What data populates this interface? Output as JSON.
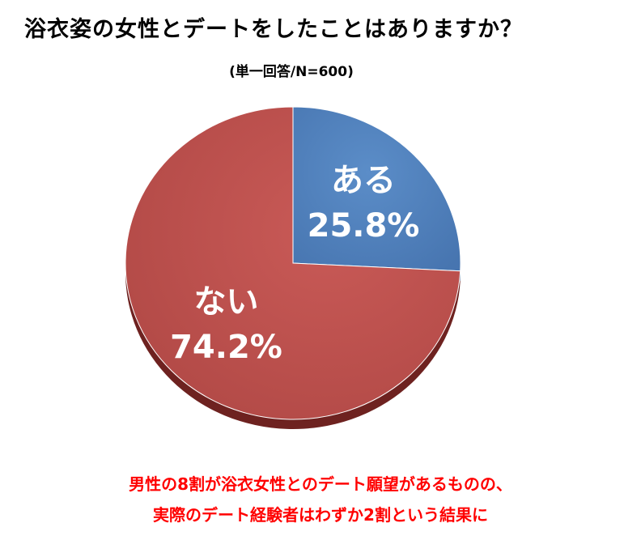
{
  "chart_data": {
    "type": "pie",
    "title": "浴衣姿の女性とデートをしたことはありますか？",
    "subtitle": "(単一回答/N=600)",
    "slices": [
      {
        "label": "ある",
        "value": 25.8,
        "value_label": "25.8%",
        "color": "#4f81bd"
      },
      {
        "label": "ない",
        "value": 74.2,
        "value_label": "74.2%",
        "color": "#c0504d"
      }
    ],
    "start_angle": "12 o'clock",
    "direction": "clockwise",
    "legend": "none"
  },
  "annotation": {
    "line1": "男性の8割が浴衣女性とのデート願望があるものの、",
    "line2": "実際のデート経験者はわずか2割という結果に"
  }
}
